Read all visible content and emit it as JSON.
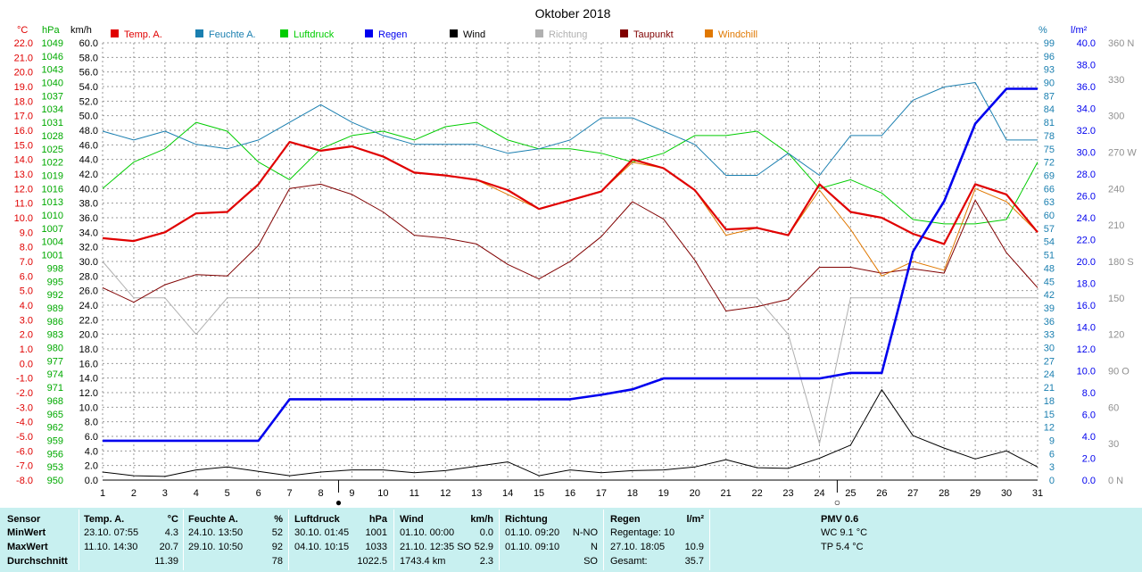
{
  "title": "Oktober 2018",
  "axis_units": {
    "temp": "°C",
    "press": "hPa",
    "wind": "km/h",
    "hum": "%",
    "rain": "l/m²",
    "dir": "360 N"
  },
  "legend": [
    {
      "name": "Temp. A.",
      "color": "#e00000"
    },
    {
      "name": "Feuchte A.",
      "color": "#1a7fb0"
    },
    {
      "name": "Luftdruck",
      "color": "#00cc00"
    },
    {
      "name": "Regen",
      "color": "#0000ee"
    },
    {
      "name": "Wind",
      "color": "#000000"
    },
    {
      "name": "Richtung",
      "color": "#b0b0b0"
    },
    {
      "name": "Taupunkt",
      "color": "#800000"
    },
    {
      "name": "Windchill",
      "color": "#e07800"
    }
  ],
  "chart_data": {
    "type": "line",
    "title": "Oktober 2018",
    "x": [
      1,
      2,
      3,
      4,
      5,
      6,
      7,
      8,
      9,
      10,
      11,
      12,
      13,
      14,
      15,
      16,
      17,
      18,
      19,
      20,
      21,
      22,
      23,
      24,
      25,
      26,
      27,
      28,
      29,
      30,
      31
    ],
    "grid": true,
    "axes": {
      "wind_kmh": {
        "range": [
          0,
          60
        ],
        "ticks": [
          "0.0",
          "2.0",
          "4.0",
          "6.0",
          "8.0",
          "10.0",
          "12.0",
          "14.0",
          "16.0",
          "18.0",
          "20.0",
          "22.0",
          "24.0",
          "26.0",
          "28.0",
          "30.0",
          "32.0",
          "34.0",
          "36.0",
          "38.0",
          "40.0",
          "42.0",
          "44.0",
          "46.0",
          "48.0",
          "50.0",
          "52.0",
          "54.0",
          "56.0",
          "58.0",
          "60.0"
        ]
      },
      "temp_c": {
        "range": [
          -8,
          22
        ],
        "ticks": [
          "-8.0",
          "-7.0",
          "-6.0",
          "-5.0",
          "-4.0",
          "-3.0",
          "-2.0",
          "-1.0",
          "0.0",
          "1.0",
          "2.0",
          "3.0",
          "4.0",
          "5.0",
          "6.0",
          "7.0",
          "8.0",
          "9.0",
          "10.0",
          "11.0",
          "12.0",
          "13.0",
          "14.0",
          "15.0",
          "16.0",
          "17.0",
          "18.0",
          "19.0",
          "20.0",
          "21.0",
          "22.0"
        ]
      },
      "pressure_hpa": {
        "range": [
          950,
          1049
        ],
        "ticks": [
          "950",
          "953",
          "956",
          "959",
          "962",
          "965",
          "968",
          "971",
          "974",
          "977",
          "980",
          "983",
          "986",
          "989",
          "992",
          "995",
          "998",
          "1001",
          "1004",
          "1007",
          "1010",
          "1013",
          "1016",
          "1019",
          "1022",
          "1025",
          "1028",
          "1031",
          "1034",
          "1037",
          "1040",
          "1043",
          "1046",
          "1049"
        ]
      },
      "humidity_pct": {
        "range": [
          0,
          99
        ],
        "ticks": [
          "0",
          "3",
          "6",
          "9",
          "12",
          "15",
          "18",
          "21",
          "24",
          "27",
          "30",
          "33",
          "36",
          "39",
          "42",
          "45",
          "48",
          "51",
          "54",
          "57",
          "60",
          "63",
          "66",
          "69",
          "72",
          "75",
          "78",
          "81",
          "84",
          "87",
          "90",
          "93",
          "96",
          "99"
        ]
      },
      "rain_lm2": {
        "range": [
          0,
          40
        ],
        "ticks": [
          "0.0",
          "2.0",
          "4.0",
          "6.0",
          "8.0",
          "10.0",
          "12.0",
          "14.0",
          "16.0",
          "18.0",
          "20.0",
          "22.0",
          "24.0",
          "26.0",
          "28.0",
          "30.0",
          "32.0",
          "34.0",
          "36.0",
          "38.0",
          "40.0"
        ]
      },
      "direction_deg": {
        "range": [
          0,
          360
        ],
        "ticks": [
          "0 N",
          "30",
          "60",
          "90 O",
          "120",
          "150",
          "180 S",
          "210",
          "240",
          "270 W",
          "300",
          "330",
          "360 N"
        ]
      }
    },
    "series": [
      {
        "name": "Temp. A.",
        "axis": "temp_c",
        "values": [
          8.6,
          8.4,
          9.0,
          10.3,
          10.4,
          12.3,
          15.2,
          14.6,
          14.9,
          14.2,
          13.1,
          12.9,
          12.6,
          11.9,
          10.6,
          11.2,
          11.8,
          14.0,
          13.4,
          11.9,
          9.2,
          9.3,
          8.8,
          12.3,
          10.4,
          10.0,
          8.9,
          8.2,
          12.3,
          11.6,
          9.0
        ]
      },
      {
        "name": "Windchill",
        "axis": "temp_c",
        "values": [
          8.6,
          8.4,
          9.0,
          10.3,
          10.4,
          12.3,
          15.2,
          14.6,
          14.9,
          14.2,
          13.1,
          12.9,
          12.6,
          11.6,
          10.6,
          11.2,
          11.8,
          13.8,
          13.4,
          11.9,
          8.8,
          9.3,
          8.8,
          11.9,
          9.2,
          6.0,
          7.0,
          6.4,
          12.0,
          11.1,
          9.0
        ]
      },
      {
        "name": "Taupunkt",
        "axis": "temp_c",
        "values": [
          5.2,
          4.2,
          5.4,
          6.1,
          6.0,
          8.1,
          12.0,
          12.3,
          11.6,
          10.4,
          8.8,
          8.6,
          8.2,
          6.8,
          5.8,
          7.0,
          8.7,
          11.1,
          9.9,
          7.1,
          3.6,
          3.9,
          4.4,
          6.6,
          6.6,
          6.2,
          6.5,
          6.2,
          11.2,
          7.6,
          5.2
        ]
      },
      {
        "name": "Feuchte A.",
        "axis": "humidity_pct",
        "values": [
          79,
          77,
          79,
          76,
          75,
          77,
          81,
          85,
          81,
          78,
          76,
          76,
          76,
          74,
          75,
          77,
          82,
          82,
          79,
          76,
          69,
          69,
          74,
          69,
          78,
          78,
          86,
          89,
          90,
          77,
          77
        ]
      },
      {
        "name": "Luftdruck",
        "axis": "pressure_hpa",
        "values": [
          1016,
          1022,
          1025,
          1031,
          1029,
          1022,
          1018,
          1025,
          1028,
          1029,
          1027,
          1030,
          1031,
          1027,
          1025,
          1025,
          1024,
          1022,
          1024,
          1028,
          1028,
          1029,
          1024,
          1016,
          1018,
          1015,
          1009,
          1008,
          1008,
          1009,
          1022
        ]
      },
      {
        "name": "Regen",
        "axis": "rain_lm2",
        "values": [
          3.6,
          3.6,
          3.6,
          3.6,
          3.6,
          3.6,
          7.4,
          7.4,
          7.4,
          7.4,
          7.4,
          7.4,
          7.4,
          7.4,
          7.4,
          7.4,
          7.8,
          8.3,
          9.3,
          9.3,
          9.3,
          9.3,
          9.3,
          9.3,
          9.8,
          9.8,
          20.9,
          25.5,
          32.6,
          35.8,
          35.8
        ]
      },
      {
        "name": "Wind",
        "axis": "wind_kmh",
        "values": [
          1.1,
          0.6,
          0.5,
          1.4,
          1.8,
          1.2,
          0.6,
          1.1,
          1.4,
          1.4,
          1.0,
          1.3,
          1.9,
          2.5,
          0.6,
          1.4,
          1.0,
          1.3,
          1.4,
          1.8,
          2.8,
          1.7,
          1.6,
          3.0,
          4.8,
          12.4,
          6.1,
          4.4,
          2.9,
          4.0,
          1.8
        ]
      },
      {
        "name": "Richtung",
        "axis": "direction_deg",
        "values": [
          180,
          150,
          150,
          120,
          150,
          150,
          150,
          150,
          150,
          150,
          150,
          150,
          150,
          150,
          150,
          150,
          150,
          150,
          150,
          150,
          150,
          150,
          120,
          30,
          150,
          150,
          150,
          150,
          150,
          150,
          150
        ]
      }
    ],
    "markers": [
      {
        "day": 9,
        "symbol": "●"
      },
      {
        "day": 25,
        "symbol": "○"
      }
    ]
  },
  "stats": {
    "sensor": {
      "header": "Sensor",
      "rows": [
        "MinWert",
        "MaxWert",
        "Durchschnitt"
      ]
    },
    "temp": {
      "header": "Temp. A.",
      "unit": "°C",
      "min_time": "23.10.  07:55",
      "min_val": "4.3",
      "max_time": "11.10.  14:30",
      "max_val": "20.7",
      "avg": "11.39"
    },
    "hum": {
      "header": "Feuchte A.",
      "unit": "%",
      "min_time": "24.10.  13:50",
      "min_val": "52",
      "max_time": "29.10.  10:50",
      "max_val": "92",
      "avg": "78"
    },
    "press": {
      "header": "Luftdruck",
      "unit": "hPa",
      "min_time": "30.10.  01:45",
      "min_val": "1001",
      "max_time": "04.10.  10:15",
      "max_val": "1033",
      "avg": "1022.5"
    },
    "wind": {
      "header": "Wind",
      "unit": "km/h",
      "min_time": "01.10.  00:00",
      "min_val": "0.0",
      "max_time": "21.10.  12:35 SO",
      "max_val": "52.9",
      "avg_dist": "1743.4 km",
      "avg": "2.3"
    },
    "dir": {
      "header": "Richtung",
      "min_time": "01.10.  09:20",
      "min_val": "N-NO",
      "max_time": "01.10.  09:10",
      "max_val": "N",
      "avg": "SO"
    },
    "rain": {
      "header": "Regen",
      "unit": "l/m²",
      "days": "Regentage: 10",
      "max_time": "27.10.  18:05",
      "max_val": "10.9",
      "total_label": "Gesamt:",
      "total": "35.7"
    },
    "pmv": {
      "header": "PMV 0.6",
      "wc": "WC 9.1 °C",
      "tp": "TP 5.4 °C"
    }
  }
}
